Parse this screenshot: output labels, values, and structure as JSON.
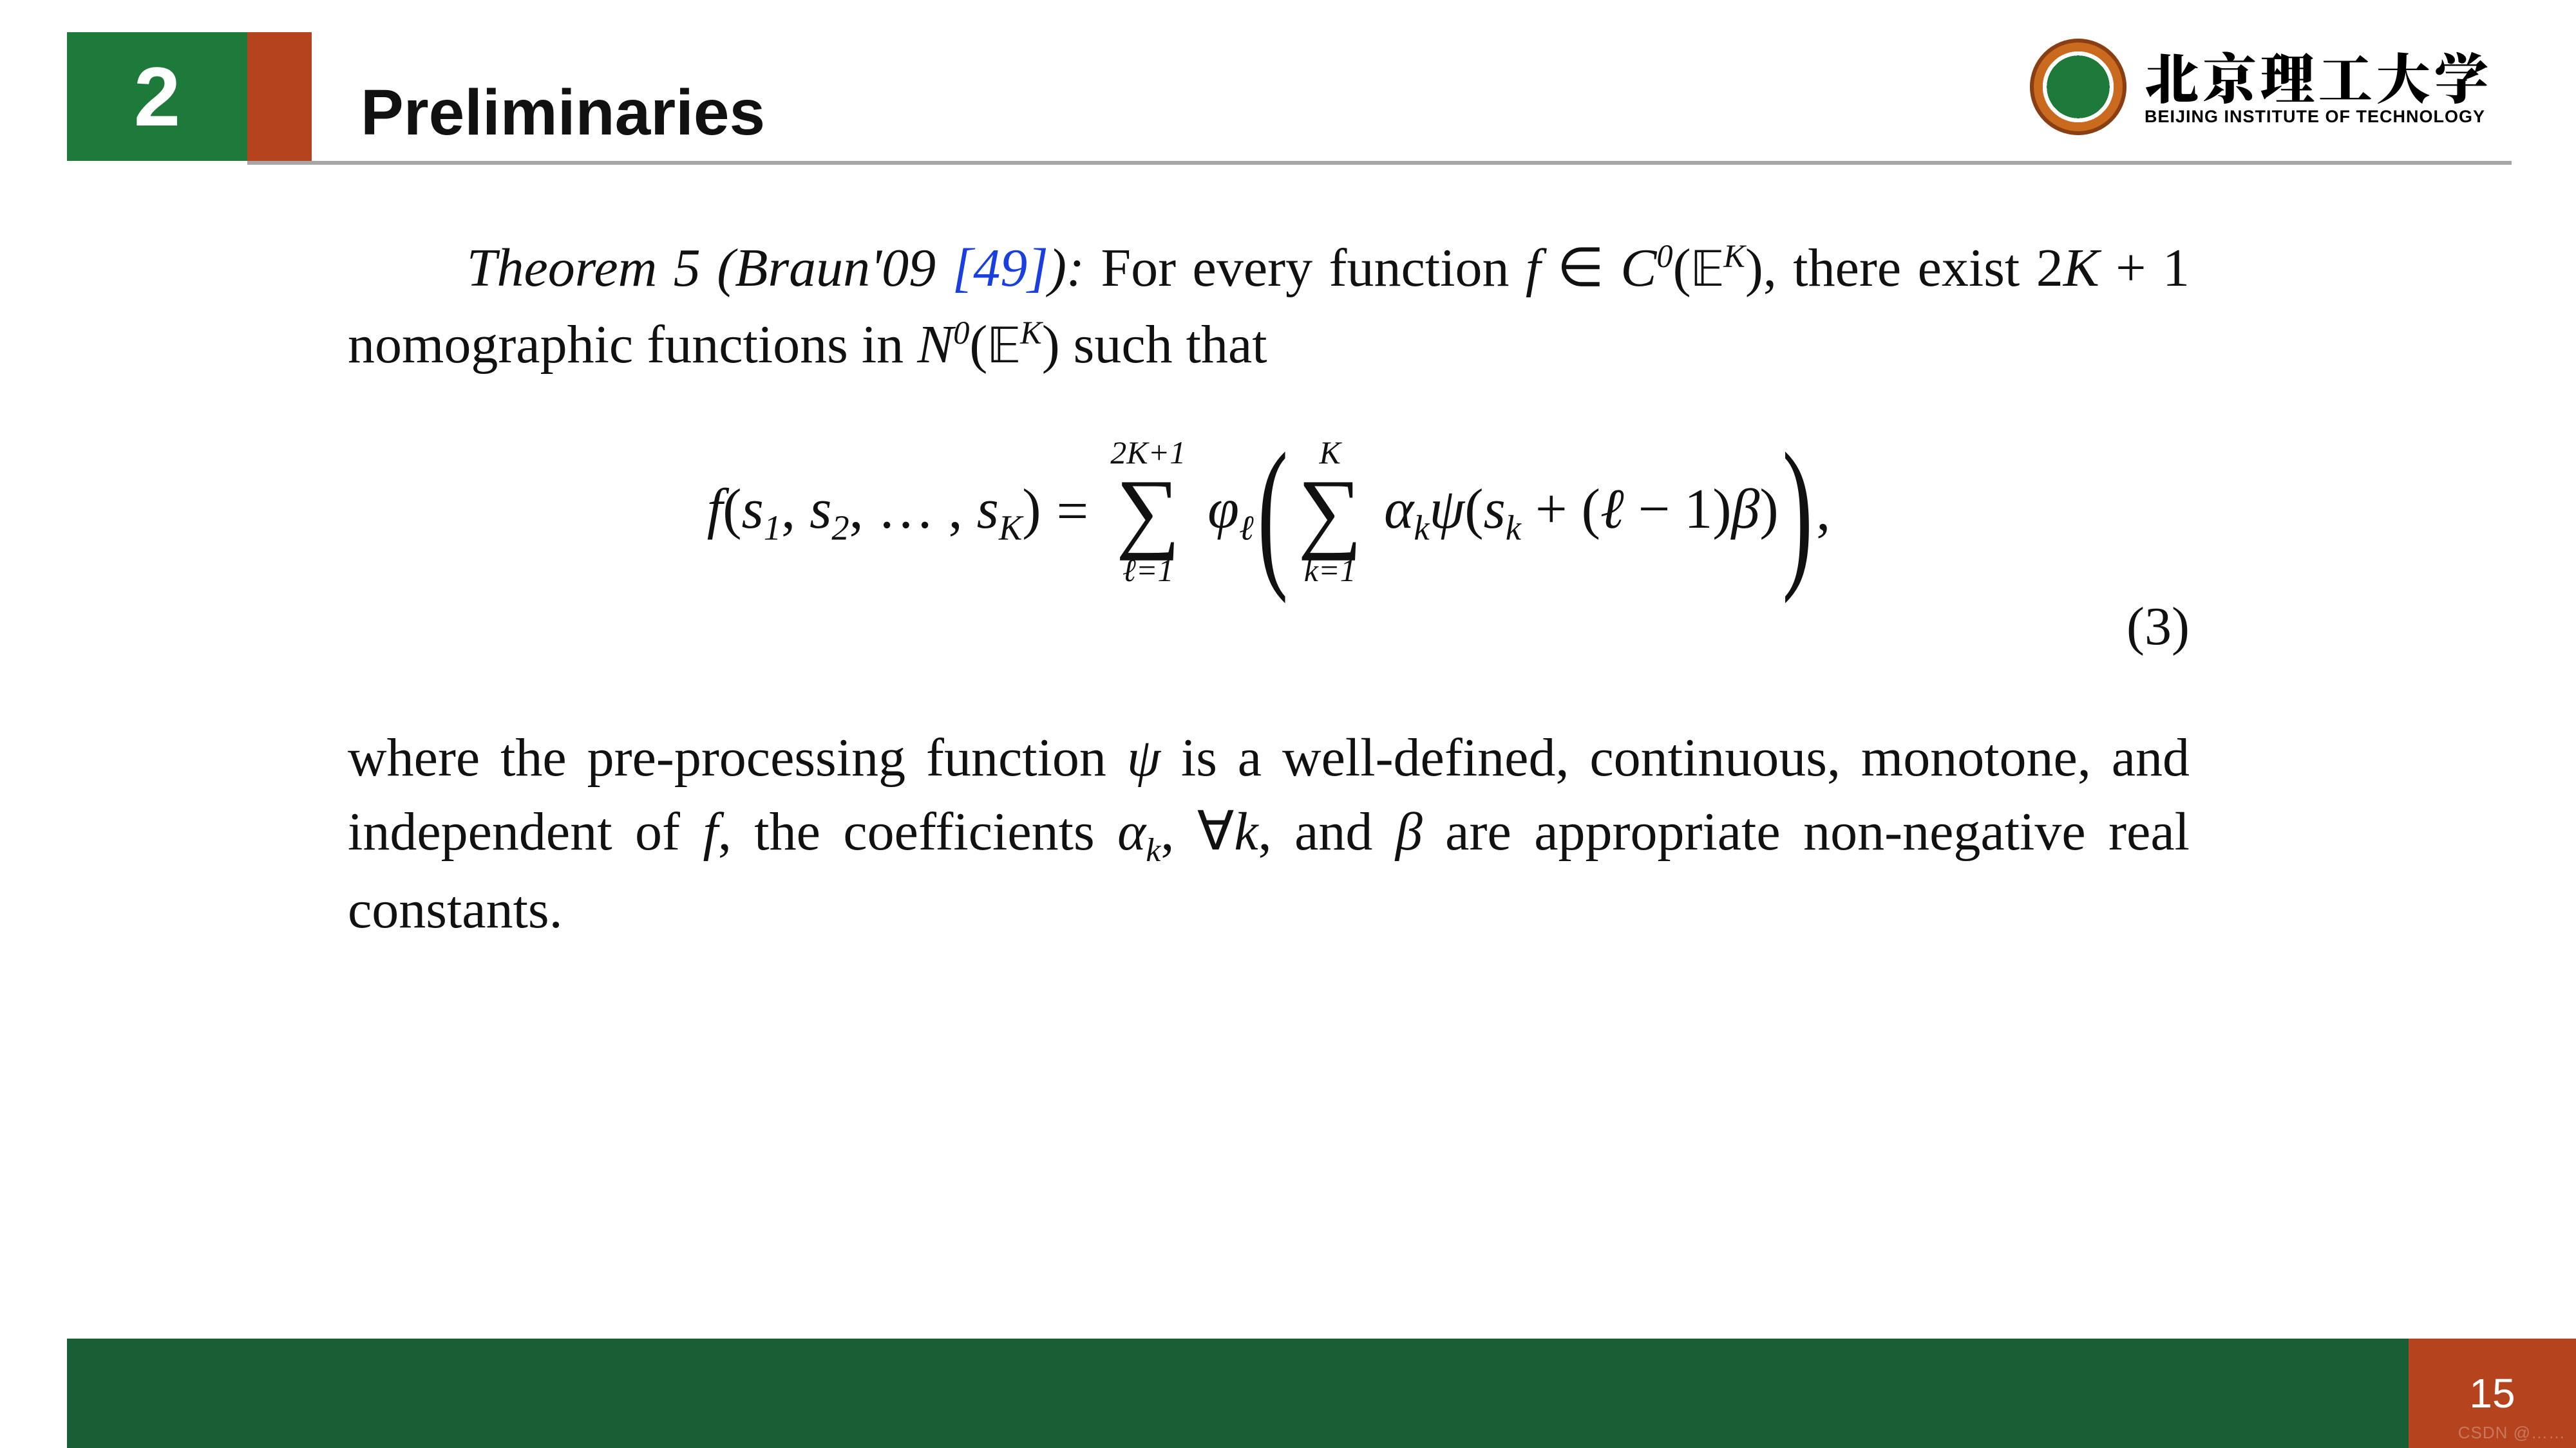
{
  "header": {
    "section_number": "2",
    "section_title": "Preliminaries",
    "box_color": "#1e7a3a",
    "strip_color": "#b5431e",
    "rule_color": "#a6a6a6"
  },
  "logo": {
    "chinese": "北京理工大学",
    "english": "BEIJING INSTITUTE OF TECHNOLOGY"
  },
  "theorem": {
    "label": "Theorem 5 (Braun'09 ",
    "citation": "[49]",
    "label_after": "):",
    "line1_a": " For every function ",
    "line1_f": "f",
    "line1_in": " ∈ ",
    "line2_C": "C",
    "line2_sup0": "0",
    "line2_open": "(",
    "line2_E": "𝔼",
    "line2_K": "K",
    "line2_close": ")",
    "line2_mid": ", there exist 2",
    "line2_Kplus": "K",
    "line2_plus1": " + 1 nomographic functions in ",
    "line3_N": "N",
    "line3_sup0b": "0",
    "line3_open": "(",
    "line3_Eb": "𝔼",
    "line3_Kb": "K",
    "line3_close": ")",
    "line3_tail": " such that"
  },
  "equation": {
    "lhs_f": "f",
    "lhs_open": "(",
    "lhs_s1": "s",
    "lhs_i1": "1",
    "lhs_c1": ", ",
    "lhs_s2": "s",
    "lhs_i2": "2",
    "lhs_c2": ", … , ",
    "lhs_sK": "s",
    "lhs_iK": "K",
    "lhs_close": ")",
    "equals": " = ",
    "sum1_upper": "2K+1",
    "sum1_sigma": "∑",
    "sum1_lower": "ℓ=1",
    "phi": "φ",
    "phi_sub": "ℓ",
    "sum2_upper": "K",
    "sum2_sigma": "∑",
    "sum2_lower": "k=1",
    "alpha": "α",
    "alpha_sub": "k",
    "psi": "ψ",
    "inner_open": "(",
    "sk": "s",
    "sk_sub": "k",
    "plus": " + (",
    "ell": "ℓ",
    "minus1": " − 1)",
    "beta": "β",
    "inner_close": ")",
    "trailing_comma": " ,",
    "number": "(3)"
  },
  "followup": {
    "a": "where the pre-processing function ",
    "psi": "ψ",
    "b": " is a well-defined, continuous, monotone, and independent of ",
    "f": "f",
    "c": ", the coefficients ",
    "alpha": "α",
    "alpha_sub": "k",
    "d": ", ∀",
    "k": "k",
    "e": ", and ",
    "beta": "β",
    "f2": " are appropriate non-negative real constants."
  },
  "footer": {
    "bar_color": "#185f36",
    "page_box_color": "#b5431e",
    "page_number": "15",
    "watermark": "CSDN @……"
  }
}
